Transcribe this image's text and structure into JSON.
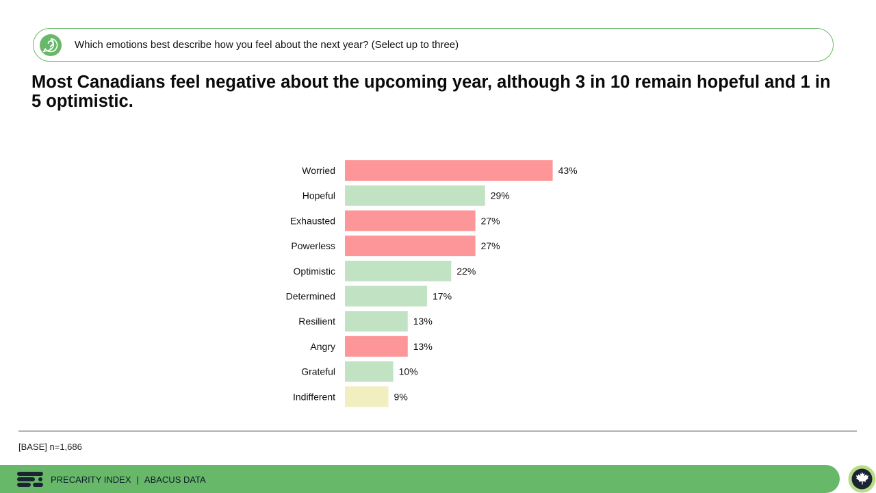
{
  "question": {
    "text": "Which emotions best describe how you feel about the next year? (Select up to three)",
    "icon": "question-bubble-icon"
  },
  "headline": "Most Canadians feel negative about the upcoming year, although 3 in 10 remain hopeful and 1 in 5 optimistic.",
  "base_note": "[BASE] n=1,686",
  "footer": {
    "brand": "PRECARITY INDEX",
    "separator": "|",
    "company": "ABACUS DATA",
    "logo_icon": "abacus-logo-icon",
    "badge_icon": "maple-leaf-badge-icon"
  },
  "colors": {
    "negative": "#fd9698",
    "positive": "#c2e2c4",
    "neutral": "#f1efc0",
    "accent": "#67b869"
  },
  "chart_data": {
    "type": "bar",
    "orientation": "horizontal",
    "categories": [
      "Worried",
      "Hopeful",
      "Exhausted",
      "Powerless",
      "Optimistic",
      "Determined",
      "Resilient",
      "Angry",
      "Grateful",
      "Indifferent"
    ],
    "values": [
      43,
      29,
      27,
      27,
      22,
      17,
      13,
      13,
      10,
      9
    ],
    "value_labels": [
      "43%",
      "29%",
      "27%",
      "27%",
      "22%",
      "17%",
      "13%",
      "13%",
      "10%",
      "9%"
    ],
    "sentiment": [
      "negative",
      "positive",
      "negative",
      "negative",
      "positive",
      "positive",
      "positive",
      "negative",
      "positive",
      "neutral"
    ],
    "unit": "%",
    "xlim": [
      0,
      100
    ],
    "grid": false,
    "legend": "none"
  }
}
